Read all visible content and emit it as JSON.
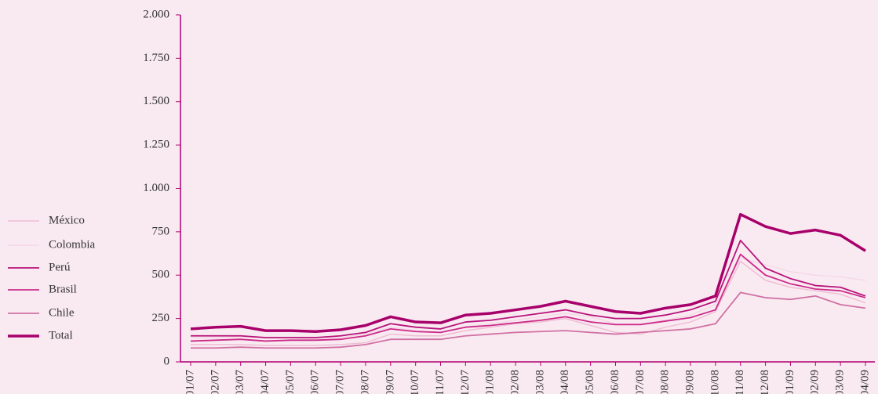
{
  "chart_data": {
    "type": "line",
    "categories": [
      "01/07",
      "02/07",
      "03/07",
      "04/07",
      "05/07",
      "06/07",
      "07/07",
      "08/07",
      "09/07",
      "10/07",
      "11/07",
      "12/07",
      "01/08",
      "02/08",
      "03/08",
      "04/08",
      "05/08",
      "06/08",
      "07/08",
      "08/08",
      "09/08",
      "10/08",
      "11/08",
      "12/08",
      "01/09",
      "02/09",
      "03/09",
      "04/09"
    ],
    "series": [
      {
        "name": "México",
        "color": "#efbdd3",
        "width": 1.5,
        "values": [
          100,
          100,
          100,
          95,
          95,
          95,
          100,
          110,
          160,
          150,
          150,
          180,
          200,
          220,
          230,
          250,
          210,
          170,
          160,
          200,
          230,
          290,
          580,
          470,
          430,
          410,
          390,
          340
        ]
      },
      {
        "name": "Colombia",
        "color": "#f5d8e6",
        "width": 1.5,
        "values": [
          140,
          140,
          145,
          140,
          140,
          130,
          140,
          160,
          200,
          180,
          170,
          200,
          220,
          240,
          260,
          280,
          260,
          220,
          220,
          240,
          270,
          330,
          600,
          560,
          520,
          500,
          490,
          470
        ]
      },
      {
        "name": "Perú",
        "color": "#b8127a",
        "width": 1.8,
        "values": [
          150,
          150,
          150,
          140,
          140,
          140,
          150,
          170,
          220,
          200,
          190,
          230,
          240,
          260,
          280,
          300,
          270,
          250,
          250,
          270,
          300,
          350,
          700,
          540,
          480,
          440,
          430,
          380
        ]
      },
      {
        "name": "Brasil",
        "color": "#cc2a88",
        "width": 1.8,
        "values": [
          120,
          125,
          130,
          120,
          125,
          125,
          130,
          150,
          190,
          175,
          170,
          200,
          210,
          225,
          240,
          260,
          230,
          215,
          215,
          235,
          255,
          300,
          620,
          500,
          450,
          420,
          410,
          370
        ]
      },
      {
        "name": "Chile",
        "color": "#d070a2",
        "width": 1.8,
        "values": [
          80,
          80,
          85,
          80,
          80,
          80,
          85,
          100,
          130,
          130,
          130,
          150,
          160,
          170,
          175,
          180,
          170,
          160,
          170,
          180,
          190,
          220,
          400,
          370,
          360,
          380,
          330,
          310
        ]
      },
      {
        "name": "Total",
        "color": "#a8006a",
        "width": 3.5,
        "values": [
          190,
          200,
          205,
          180,
          180,
          175,
          185,
          210,
          260,
          230,
          225,
          270,
          280,
          300,
          320,
          350,
          320,
          290,
          280,
          310,
          330,
          380,
          850,
          780,
          740,
          760,
          730,
          640
        ]
      }
    ],
    "ylim": [
      0,
      2000
    ],
    "yticks": [
      0,
      250,
      500,
      750,
      {
        "value": 1000,
        "label": "1.000"
      },
      {
        "value": 1250,
        "label": "1.250"
      },
      {
        "value": 1500,
        "label": "1.500"
      },
      {
        "value": 1750,
        "label": "1.750"
      },
      {
        "value": 2000,
        "label": "2.000"
      }
    ],
    "legend": "left"
  }
}
